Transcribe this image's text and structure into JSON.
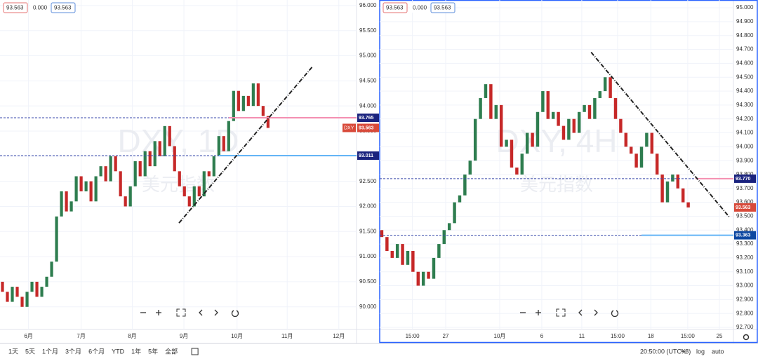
{
  "chart_data": [
    {
      "type": "candlestick",
      "title": "DXY, 1D",
      "subtitle": "美元指数",
      "legend_values": [
        "93.563",
        "0.000",
        "93.563"
      ],
      "symbol_label": "DXY",
      "last_price_label": "93.563",
      "up_color": "#2e7d4f",
      "down_color": "#c62828",
      "open": 90.5,
      "values": [
        90.3,
        90.1,
        90.4,
        90.2,
        90.0,
        90.3,
        90.5,
        90.2,
        90.4,
        90.6,
        90.9,
        91.8,
        92.3,
        91.9,
        92.1,
        92.6,
        92.3,
        92.5,
        92.1,
        92.6,
        92.8,
        92.5,
        93.0,
        92.7,
        92.2,
        92.0,
        92.4,
        92.9,
        92.6,
        93.1,
        92.8,
        93.3,
        93.0,
        93.6,
        93.2,
        92.7,
        92.4,
        92.2,
        92.0,
        92.4,
        92.2,
        92.7,
        92.6,
        93.0,
        93.4,
        93.1,
        93.7,
        94.3,
        93.9,
        94.2,
        94.0,
        94.45,
        94.0,
        93.8,
        93.563
      ],
      "xlim": [
        -0.5,
        72
      ],
      "xticks": [
        {
          "value": 5.3,
          "label": "6月"
        },
        {
          "value": 16,
          "label": "7月"
        },
        {
          "value": 26.4,
          "label": "8月"
        },
        {
          "value": 36.9,
          "label": "9月"
        },
        {
          "value": 47.7,
          "label": "10月"
        },
        {
          "value": 57.9,
          "label": "11月"
        },
        {
          "value": 68.4,
          "label": "12月"
        }
      ],
      "ylim": [
        89.55,
        96.11
      ],
      "yticks": [
        {
          "value": 90,
          "label": "90.000"
        },
        {
          "value": 90.5,
          "label": "90.500"
        },
        {
          "value": 91,
          "label": "91.000"
        },
        {
          "value": 91.5,
          "label": "91.500"
        },
        {
          "value": 92,
          "label": "92.000"
        },
        {
          "value": 92.5,
          "label": "92.500"
        },
        {
          "value": 93,
          "label": "93.000"
        },
        {
          "value": 93.5,
          "label": "93.500"
        },
        {
          "value": 94,
          "label": "94.000"
        },
        {
          "value": 94.5,
          "label": "94.500"
        },
        {
          "value": 95,
          "label": "95.000"
        },
        {
          "value": 95.5,
          "label": "95.500"
        },
        {
          "value": 96,
          "label": "96.000"
        }
      ],
      "hlines": [
        {
          "value": 93.765,
          "label": "93.765",
          "color": "#1a237e",
          "segment_from": 46,
          "segment_color": "#f48fb1"
        },
        {
          "value": 93.011,
          "label": "93.011",
          "color": "#1a237e",
          "segment_from": 44,
          "segment_color": "#64b5f6"
        }
      ],
      "trendlines": [
        {
          "x": [
            35.9,
            63.1
          ],
          "y": [
            91.67,
            94.79
          ]
        }
      ]
    },
    {
      "type": "candlestick",
      "title": "DXY, 4H",
      "subtitle": "美元指数",
      "legend_values": [
        "93.563",
        "0.000",
        "93.563"
      ],
      "last_price_label": "93.563",
      "up_color": "#2e7d4f",
      "down_color": "#c62828",
      "open": 93.4,
      "values": [
        93.35,
        93.25,
        93.2,
        93.3,
        93.15,
        93.25,
        93.1,
        93.0,
        93.1,
        93.05,
        93.2,
        93.3,
        93.4,
        93.45,
        93.6,
        93.65,
        93.8,
        93.9,
        94.2,
        94.35,
        94.45,
        94.2,
        94.3,
        94.0,
        94.05,
        93.85,
        93.8,
        93.95,
        94.1,
        94.0,
        94.25,
        94.4,
        94.2,
        94.25,
        94.15,
        94.05,
        94.2,
        94.1,
        94.25,
        94.3,
        94.2,
        94.35,
        94.4,
        94.5,
        94.35,
        94.2,
        94.1,
        94.0,
        93.95,
        93.85,
        94.0,
        94.1,
        93.95,
        93.8,
        93.6,
        93.75,
        93.8,
        93.7,
        93.6,
        93.563
      ],
      "xlim": [
        -0.4,
        67.7
      ],
      "xticks": [
        {
          "value": 5.9,
          "label": "15:00"
        },
        {
          "value": 12.3,
          "label": "27"
        },
        {
          "value": 22.7,
          "label": "10月"
        },
        {
          "value": 30.8,
          "label": "6"
        },
        {
          "value": 38.5,
          "label": "11"
        },
        {
          "value": 45.4,
          "label": "15:00"
        },
        {
          "value": 51.8,
          "label": "18"
        },
        {
          "value": 58.9,
          "label": "15:00"
        },
        {
          "value": 65,
          "label": "25"
        }
      ],
      "ylim": [
        92.685,
        95.056
      ],
      "yticks": [
        {
          "value": 92.7,
          "label": "92.700"
        },
        {
          "value": 92.8,
          "label": "92.800"
        },
        {
          "value": 92.9,
          "label": "92.900"
        },
        {
          "value": 93,
          "label": "93.000"
        },
        {
          "value": 93.1,
          "label": "93.100"
        },
        {
          "value": 93.2,
          "label": "93.200"
        },
        {
          "value": 93.3,
          "label": "93.300"
        },
        {
          "value": 93.4,
          "label": "93.400"
        },
        {
          "value": 93.5,
          "label": "93.500"
        },
        {
          "value": 93.6,
          "label": "93.600"
        },
        {
          "value": 93.7,
          "label": "93.700"
        },
        {
          "value": 93.8,
          "label": "93.800"
        },
        {
          "value": 93.9,
          "label": "93.900"
        },
        {
          "value": 94,
          "label": "94.000"
        },
        {
          "value": 94.1,
          "label": "94.100"
        },
        {
          "value": 94.2,
          "label": "94.200"
        },
        {
          "value": 94.3,
          "label": "94.300"
        },
        {
          "value": 94.4,
          "label": "94.400"
        },
        {
          "value": 94.5,
          "label": "94.500"
        },
        {
          "value": 94.6,
          "label": "94.600"
        },
        {
          "value": 94.7,
          "label": "94.700"
        },
        {
          "value": 94.8,
          "label": "94.800"
        },
        {
          "value": 94.9,
          "label": "94.900"
        },
        {
          "value": 95,
          "label": "95.000"
        }
      ],
      "hlines": [
        {
          "value": 93.77,
          "label": "93.770",
          "color": "#1a237e",
          "segment_from": 60.4,
          "segment_color": "#f48fb1"
        },
        {
          "value": 93.363,
          "label": "93.363",
          "color": "#0d47a1",
          "segment_from": 50,
          "segment_color": "#64b5f6"
        }
      ],
      "trendlines": [
        {
          "x": [
            40.3,
            67.0
          ],
          "y": [
            94.68,
            93.49
          ]
        }
      ]
    }
  ],
  "toolbar": {
    "ranges": [
      "1天",
      "5天",
      "1个月",
      "3个月",
      "6个月",
      "YTD",
      "1年",
      "5年",
      "全部"
    ],
    "time": "20:50:00 (UTC+8)",
    "options": [
      "%",
      "log",
      "auto"
    ]
  }
}
